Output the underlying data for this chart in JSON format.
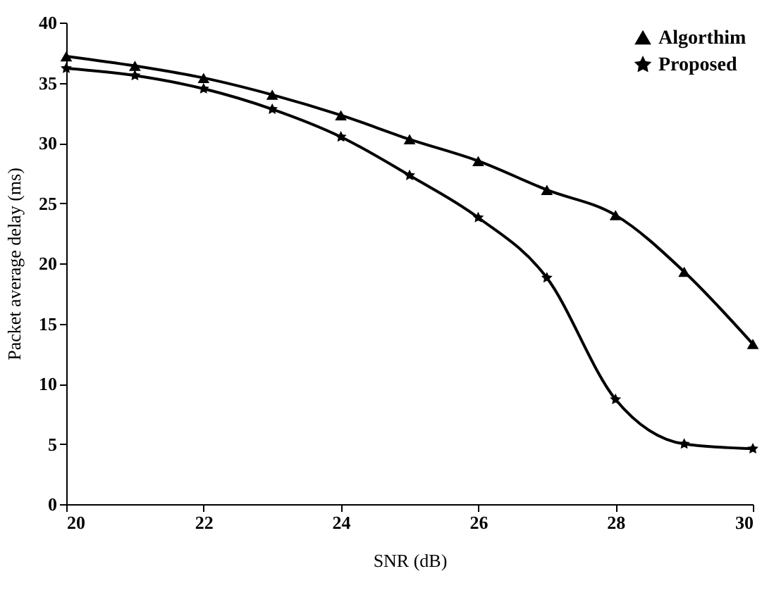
{
  "chart_data": {
    "type": "line",
    "xlabel": "SNR (dB)",
    "ylabel": "Packet average delay (ms)",
    "x": [
      20,
      21,
      22,
      23,
      24,
      25,
      26,
      27,
      28,
      29,
      30
    ],
    "series": [
      {
        "name": "Algorthim",
        "color": "#000000",
        "marker": "triangle",
        "values": [
          37.2,
          36.4,
          35.4,
          34.0,
          32.3,
          30.3,
          28.5,
          26.1,
          24.0,
          19.3,
          13.3
        ]
      },
      {
        "name": "Proposed",
        "color": "#000000",
        "marker": "star",
        "values": [
          36.2,
          35.6,
          34.5,
          32.8,
          30.5,
          27.3,
          23.8,
          18.8,
          8.7,
          5.0,
          4.6
        ]
      }
    ],
    "xlim": [
      20,
      30
    ],
    "xticks": [
      20,
      22,
      24,
      26,
      28,
      30
    ],
    "ylim": [
      0,
      40
    ],
    "yticks": [
      0,
      5,
      10,
      15,
      20,
      25,
      30,
      35,
      40
    ],
    "grid": false,
    "legend": "top right",
    "line_style": "solid"
  }
}
